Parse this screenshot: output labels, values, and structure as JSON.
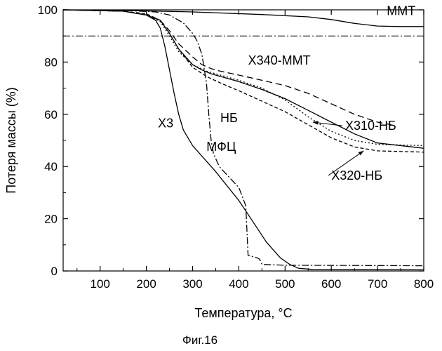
{
  "figure_caption": "Фиг.16",
  "chart_data": {
    "type": "line",
    "title": "",
    "xlabel": "Температура, °C",
    "ylabel": "Потеря массы (%)",
    "xlim": [
      20,
      800
    ],
    "ylim": [
      0,
      100
    ],
    "xticks": [
      100,
      200,
      300,
      400,
      500,
      600,
      700,
      800
    ],
    "yticks": [
      0,
      20,
      40,
      60,
      80,
      100
    ],
    "grid": false,
    "legend": "none",
    "reference_line": {
      "y": 90,
      "style": "dash-dot"
    },
    "series": [
      {
        "name": "MMT",
        "style": "solid",
        "x": [
          20,
          150,
          300,
          450,
          550,
          600,
          650,
          700,
          750,
          800
        ],
        "y": [
          100,
          99.8,
          99.2,
          98.2,
          97.3,
          96.3,
          94.8,
          93.8,
          93.6,
          93.6
        ]
      },
      {
        "name": "X340-MMT",
        "style": "dashed",
        "x": [
          20,
          150,
          200,
          230,
          250,
          270,
          300,
          320,
          340,
          360,
          400,
          450,
          500,
          550,
          600,
          650,
          700,
          730
        ],
        "y": [
          100,
          99.5,
          98,
          96,
          92,
          87,
          82,
          79,
          77.5,
          76.5,
          75,
          73,
          71,
          68,
          64,
          60,
          57,
          56
        ]
      },
      {
        "name": "X310-HБ",
        "style": "solid",
        "x": [
          20,
          150,
          200,
          230,
          250,
          270,
          300,
          320,
          340,
          360,
          400,
          450,
          500,
          550,
          600,
          650,
          700,
          800
        ],
        "y": [
          100,
          99.5,
          98,
          96,
          91,
          85,
          79,
          77,
          75.5,
          74.5,
          72.5,
          69.5,
          66,
          61.5,
          57,
          52.5,
          49,
          47
        ]
      },
      {
        "name": "X320-HБ",
        "style": "dotted",
        "x": [
          20,
          150,
          200,
          230,
          250,
          270,
          300,
          330,
          360,
          400,
          450,
          500,
          550,
          600,
          650,
          700,
          800
        ],
        "y": [
          100,
          99.5,
          98,
          95.5,
          90,
          84,
          79,
          76.5,
          75,
          73,
          70,
          65.5,
          59,
          53.5,
          50,
          48.5,
          48
        ]
      },
      {
        "name": "HБ",
        "style": "short-dash",
        "x": [
          20,
          150,
          200,
          230,
          250,
          270,
          300,
          330,
          360,
          400,
          450,
          500,
          550,
          600,
          650,
          700,
          800
        ],
        "y": [
          100,
          99.5,
          98.5,
          96,
          91,
          85,
          78,
          74.5,
          72,
          69,
          65,
          61,
          56,
          51,
          47.5,
          46,
          45.5
        ]
      },
      {
        "name": "MФЦ",
        "style": "dash-dot",
        "x": [
          20,
          150,
          220,
          250,
          280,
          300,
          310,
          320,
          330,
          335,
          340,
          345,
          350,
          355,
          360,
          400,
          415,
          420,
          430,
          440,
          445,
          450,
          500,
          800
        ],
        "y": [
          100,
          99.8,
          99.2,
          98,
          95,
          91,
          88,
          83,
          72,
          60,
          50,
          45,
          43,
          41,
          39.5,
          32,
          25,
          6,
          5.5,
          5,
          4.5,
          2.5,
          2.2,
          2.0
        ]
      },
      {
        "name": "X3",
        "style": "solid",
        "x": [
          20,
          150,
          200,
          220,
          230,
          240,
          250,
          260,
          270,
          280,
          300,
          350,
          400,
          430,
          460,
          490,
          510,
          530,
          560,
          800
        ],
        "y": [
          100,
          99.5,
          98,
          96,
          93,
          86,
          77,
          68,
          60,
          54,
          48,
          38,
          27,
          19,
          11,
          5,
          2.5,
          1,
          0.6,
          0.5
        ]
      }
    ],
    "annotations": [
      {
        "text": "MMT",
        "x": 720,
        "y": 98,
        "arrow": false
      },
      {
        "text": "X340-MMT",
        "x": 420,
        "y": 79,
        "arrow": false
      },
      {
        "text": "HБ",
        "x": 360,
        "y": 57,
        "arrow": false
      },
      {
        "text": "X3",
        "x": 225,
        "y": 55,
        "arrow": false
      },
      {
        "text": "MФЦ",
        "x": 330,
        "y": 46,
        "arrow": false
      },
      {
        "text": "X310-HБ",
        "x": 630,
        "y": 54,
        "arrow": true,
        "arrow_to": [
          560,
          57
        ]
      },
      {
        "text": "X320-HБ",
        "x": 600,
        "y": 35,
        "arrow": true,
        "arrow_to": [
          670,
          46
        ]
      }
    ]
  }
}
